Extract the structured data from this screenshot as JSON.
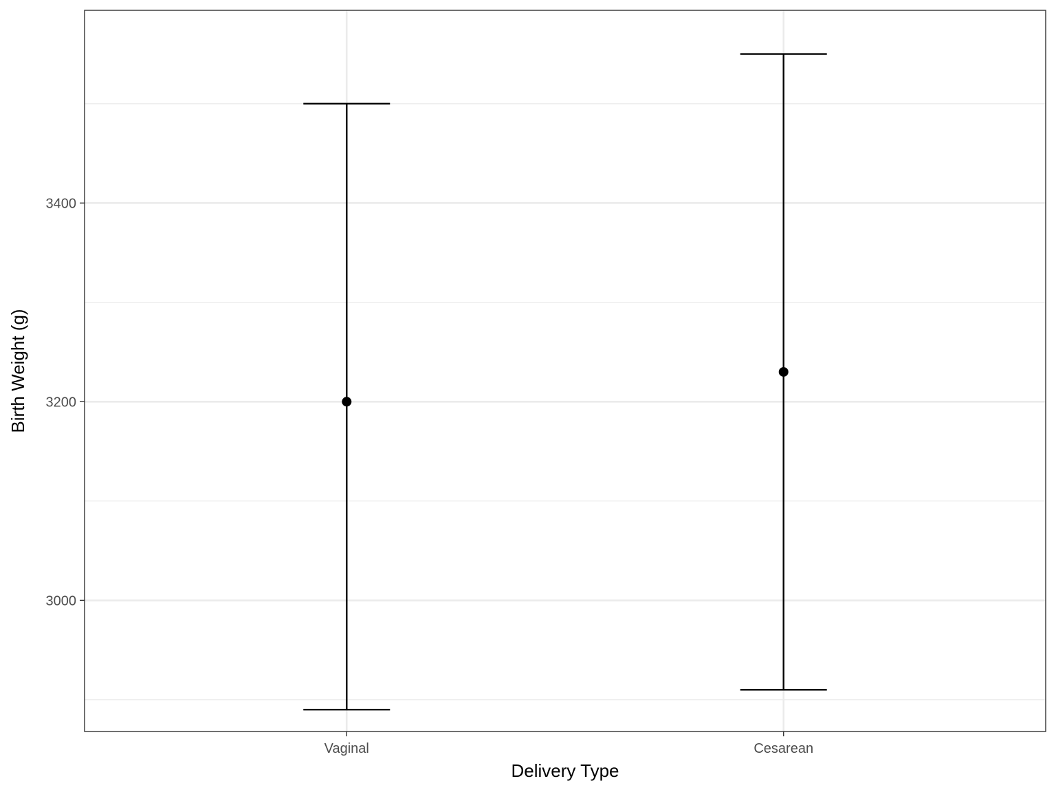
{
  "chart_data": {
    "type": "errorbar",
    "xlabel": "Delivery Type",
    "ylabel": "Birth Weight (g)",
    "categories": [
      "Vaginal",
      "Cesarean"
    ],
    "values": [
      3200,
      3230
    ],
    "lower": [
      2890,
      2910
    ],
    "upper": [
      3500,
      3550
    ],
    "ylim": [
      2868,
      3594
    ],
    "yticks": [
      3000,
      3200,
      3400
    ],
    "yticks_minor": [
      2900,
      3100,
      3300,
      3500
    ],
    "grid": true,
    "legend": "none",
    "colors": {
      "point": "#000000",
      "errorbar": "#000000",
      "grid": "#ebebeb",
      "panel_border": "#333333"
    }
  }
}
